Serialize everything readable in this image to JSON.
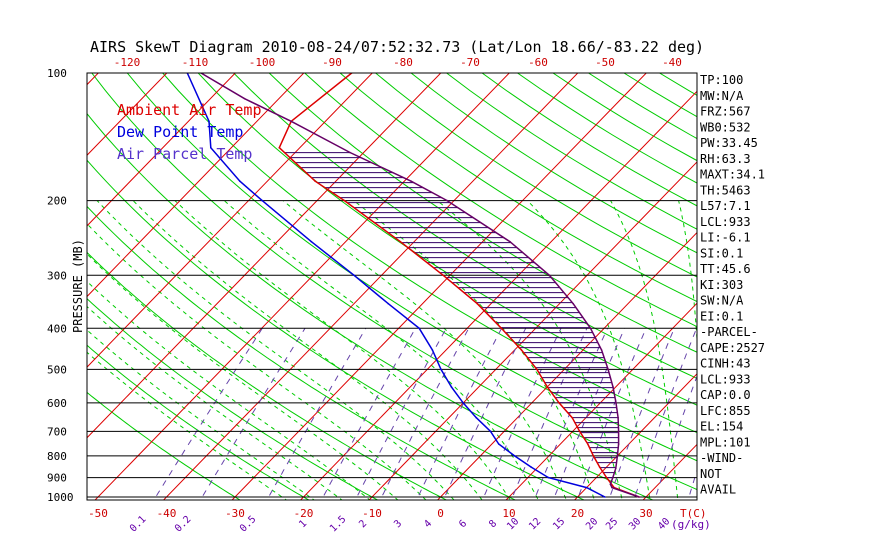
{
  "chart_data": {
    "type": "line",
    "title": "AIRS SkewT Diagram 2010-08-24/07:52:32.73 (Lat/Lon 18.66/-83.22 deg)",
    "ylabel": "PRESSURE (MB)",
    "xlabel": "T(C)",
    "mixing_ratio_unit": "(g/kg)",
    "ylim": [
      1000,
      100
    ],
    "xlim": [
      -50,
      30
    ],
    "y_scale": "log",
    "grid": true,
    "pressure_ticks": [
      100,
      200,
      300,
      400,
      500,
      600,
      700,
      800,
      900,
      1000
    ],
    "bottom_temp_ticks": [
      -50,
      -40,
      -30,
      -20,
      -10,
      0,
      10,
      20,
      30
    ],
    "top_temp_ticks": [
      -120,
      -110,
      -100,
      -90,
      -80,
      -70,
      -60,
      -50,
      -40
    ],
    "mixing_ratio_labels": [
      "0.1",
      "0.2",
      "0.5",
      "1",
      "1.5",
      "2",
      "3",
      "4",
      "6",
      "8",
      "10",
      "12",
      "15",
      "20",
      "25",
      "30",
      "40"
    ],
    "mixing_ratio_values": [
      0.1,
      0.2,
      0.5,
      1,
      1.5,
      2,
      3,
      4,
      6,
      8,
      10,
      12,
      15,
      20,
      25,
      30,
      40
    ],
    "legend": [
      "Ambient Air Temp",
      "Dew Point Temp",
      "Air Parcel Temp"
    ],
    "legend_placement": "top-left",
    "series": [
      {
        "name": "Ambient Air Temp",
        "color": "#dd0000",
        "pressure": [
          1000,
          950,
          900,
          850,
          800,
          750,
          700,
          650,
          600,
          550,
          500,
          450,
          400,
          350,
          300,
          250,
          200,
          180,
          150,
          130,
          100
        ],
        "temperature": [
          29,
          24,
          21.5,
          19,
          16.5,
          14,
          11,
          8,
          4,
          0,
          -4,
          -9,
          -15,
          -22,
          -31,
          -42,
          -56,
          -63,
          -73,
          -75,
          -73
        ]
      },
      {
        "name": "Dew Point Temp",
        "color": "#0000dd",
        "pressure": [
          1000,
          950,
          900,
          850,
          800,
          750,
          700,
          650,
          600,
          550,
          500,
          450,
          400,
          350,
          300,
          250,
          200,
          180,
          150,
          130,
          100
        ],
        "temperature": [
          24,
          20,
          13,
          9,
          5,
          1,
          -2,
          -6,
          -10,
          -14,
          -18,
          -22,
          -27,
          -35,
          -44,
          -55,
          -68,
          -74,
          -83,
          -87,
          -97
        ]
      },
      {
        "name": "Air Parcel Temp",
        "color": "#660066",
        "pressure": [
          1000,
          950,
          933,
          900,
          855,
          800,
          750,
          700,
          650,
          600,
          550,
          500,
          450,
          400,
          350,
          300,
          250,
          200,
          180,
          154,
          130,
          115,
          100
        ],
        "temperature": [
          29,
          23.7,
          23.0,
          22.4,
          21.5,
          20.0,
          18.5,
          16.7,
          14.7,
          12.3,
          9.6,
          6.4,
          2.7,
          -2.0,
          -8.0,
          -15.5,
          -26,
          -41,
          -49,
          -62,
          -75,
          -85,
          -95
        ]
      }
    ],
    "indices": [
      "TP:100",
      "MW:N/A",
      "FRZ:567",
      "WB0:532",
      "PW:33.45",
      "RH:63.3",
      "MAXT:34.1",
      "TH:5463",
      "L57:7.1",
      "LCL:933",
      "LI:-6.1",
      "SI:0.1",
      "TT:45.6",
      "KI:303",
      "SW:N/A",
      "EI:0.1",
      "-PARCEL-",
      "CAPE:2527",
      "CINH:43",
      "LCL:933",
      "CAP:0.0",
      "LFC:855",
      "EL:154",
      "MPL:101",
      "-WIND-",
      "NOT",
      "AVAIL"
    ]
  }
}
